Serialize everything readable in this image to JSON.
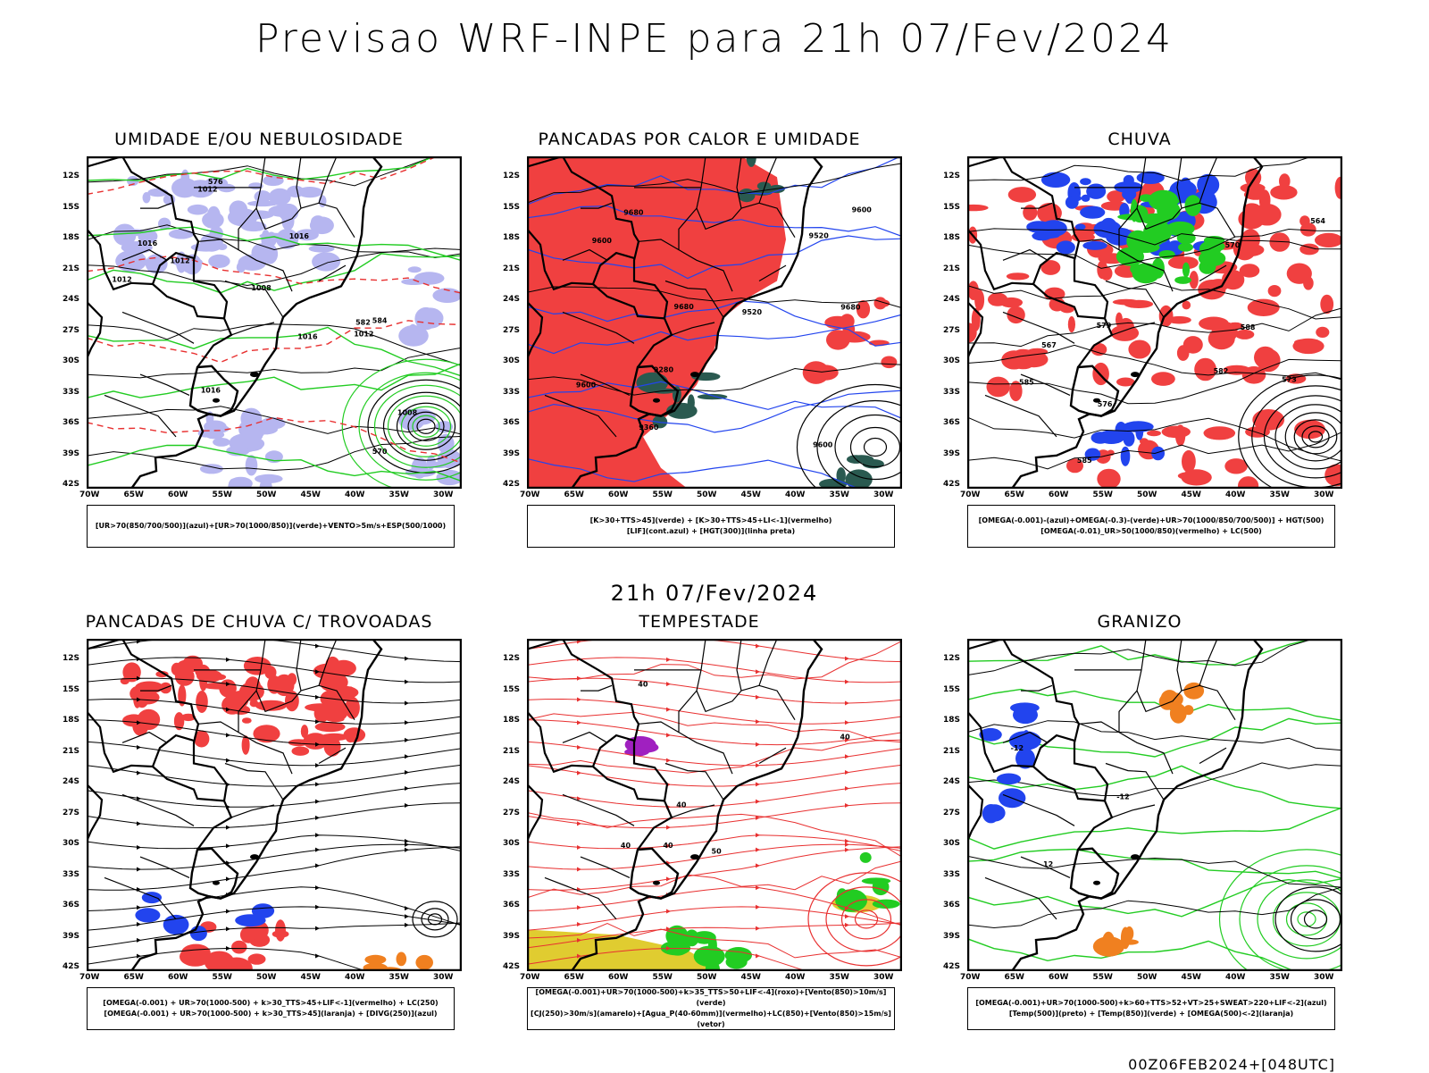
{
  "page": {
    "title": "Previsao WRF-INPE  para 21h 07/Fev/2024",
    "mid_title": "21h 07/Fev/2024",
    "footer": "00Z06FEB2024+[048UTC]"
  },
  "axes": {
    "lat_labels": [
      "12S",
      "15S",
      "18S",
      "21S",
      "24S",
      "27S",
      "30S",
      "33S",
      "36S",
      "39S",
      "42S"
    ],
    "lon_labels": [
      "70W",
      "65W",
      "60W",
      "55W",
      "50W",
      "45W",
      "40W",
      "35W",
      "30W"
    ]
  },
  "panels": [
    {
      "title": "UMIDADE E/OU NEBULOSIDADE",
      "legend": [
        "[UR>70(850/700/500)](azul)+[UR>70(1000/850)](verde)+VENTO>5m/s+ESP(500/1000)"
      ],
      "contour_labels": [
        "1012",
        "1016",
        "1008",
        "1012",
        "1016",
        "1016",
        "1012",
        "1016",
        "1008",
        "1012",
        "576",
        "582",
        "570",
        "584"
      ]
    },
    {
      "title": "PANCADAS POR CALOR E UMIDADE",
      "legend": [
        "[K>30+TTS>45](verde) + [K>30+TTS>45+LI<-1](vermelho)",
        "[LIF](cont.azul) + [HGT(300)](linha preta)"
      ],
      "contour_labels": [
        "9680",
        "9680",
        "9680",
        "9600",
        "9600",
        "9600",
        "9520",
        "9360",
        "9280",
        "9600",
        "9520"
      ]
    },
    {
      "title": "CHUVA",
      "legend": [
        "[OMEGA(-0.001)-(azul)+OMEGA(-0.3)-(verde)+UR>70(1000/850/700/500)] + HGT(500)",
        "[OMEGA(-0.01)_UR>50(1000/850)(vermelho) + LC(500)"
      ],
      "contour_labels": [
        "585",
        "582",
        "579",
        "576",
        "573",
        "570",
        "567",
        "564",
        "588",
        "585"
      ]
    },
    {
      "title": "PANCADAS DE CHUVA C/ TROVOADAS",
      "legend": [
        "[OMEGA(-0.001) + UR>70(1000-500) + k>30_TTS>45+LIF<-1](vermelho) + LC(250)",
        "[OMEGA(-0.001) + UR>70(1000-500) + k>30_TTS>45](laranja) + [DIVG(250)](azul)"
      ],
      "contour_labels": []
    },
    {
      "title": "TEMPESTADE",
      "legend": [
        "[OMEGA(-0.001)+UR>70(1000-500)+k>35_TTS>50+LIF<-4](roxo)+[Vento(850)>10m/s](verde)",
        "[CJ(250)>30m/s](amarelo)+[Agua_P(40-60mm)](vermelho)+LC(850)+[Vento(850)>15m/s](vetor)"
      ],
      "contour_labels": [
        "40",
        "40",
        "40",
        "40",
        "50",
        "40"
      ]
    },
    {
      "title": "GRANIZO",
      "legend": [
        "[OMEGA(-0.001)+UR>70(1000-500)+k>60+TTS>52+VT>25+SWEAT>220+LIF<-2](azul)",
        "[Temp(500)](preto) + [Temp(850)](verde) + [OMEGA(500)<-2](laranja)"
      ],
      "contour_labels": [
        "-12",
        "-12",
        "12"
      ]
    }
  ],
  "chart_data": [
    {
      "type": "heatmap",
      "title": "UMIDADE E/OU NEBULOSIDADE",
      "xlim": [
        -70,
        -28
      ],
      "ylim": [
        -42,
        -10
      ],
      "fields": [
        "UR>70 850/700/500 (blue)",
        "UR>70 1000/850 (green)",
        "PNMM isobars (black)",
        "ESP 500/1000 (red dashed)"
      ]
    },
    {
      "type": "heatmap",
      "title": "PANCADAS POR CALOR E UMIDADE",
      "xlim": [
        -70,
        -28
      ],
      "ylim": [
        -42,
        -10
      ],
      "fields": [
        "K>30+TTS>45 (green)",
        "K>30+TTS>45+LI<-1 (red)",
        "LIF (blue contour)",
        "HGT 300 (black)"
      ]
    },
    {
      "type": "heatmap",
      "title": "CHUVA",
      "xlim": [
        -70,
        -28
      ],
      "ylim": [
        -42,
        -10
      ],
      "fields": [
        "OMEGA blue",
        "OMEGA green",
        "OMEGA red",
        "HGT 500"
      ]
    },
    {
      "type": "heatmap",
      "title": "PANCADAS DE CHUVA C/ TROVOADAS",
      "xlim": [
        -70,
        -28
      ],
      "ylim": [
        -42,
        -10
      ],
      "fields": [
        "red",
        "orange",
        "blue",
        "LC 250 streamlines"
      ]
    },
    {
      "type": "heatmap",
      "title": "TEMPESTADE",
      "xlim": [
        -70,
        -28
      ],
      "ylim": [
        -42,
        -10
      ],
      "fields": [
        "purple",
        "green",
        "yellow",
        "red LC 850"
      ]
    },
    {
      "type": "heatmap",
      "title": "GRANIZO",
      "xlim": [
        -70,
        -28
      ],
      "ylim": [
        -42,
        -10
      ],
      "fields": [
        "blue",
        "Temp 500 black",
        "Temp 850 green",
        "orange"
      ]
    }
  ],
  "colors": {
    "blue_fill": "#b6b6f0",
    "green": "#22cc22",
    "red": "#f04040",
    "red_line": "#e83030",
    "blue": "#2244ee",
    "darkgreen": "#2a5a50",
    "yellow": "#e0cc30",
    "orange": "#f08020",
    "purple": "#a020c0",
    "black": "#000000"
  }
}
